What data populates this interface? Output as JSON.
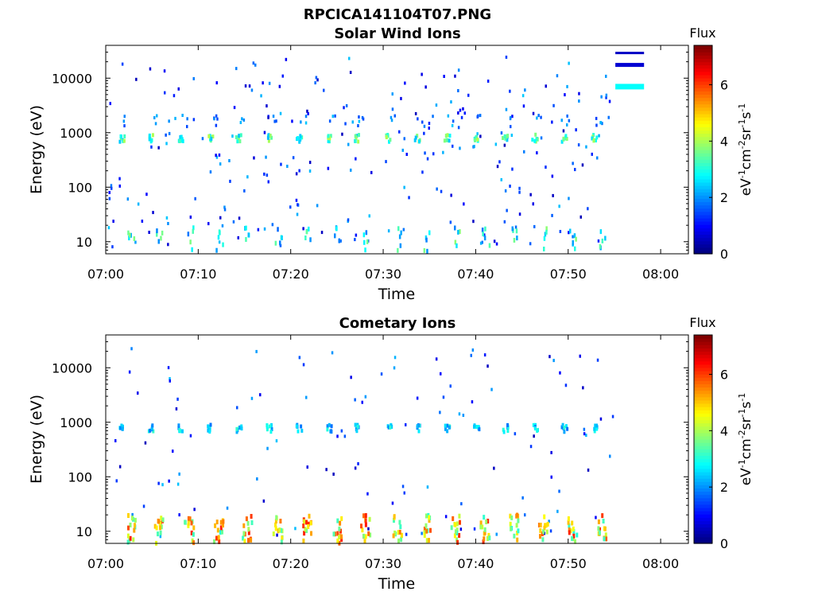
{
  "figure_title": "RPCICA141104T07.PNG",
  "chart_data": [
    {
      "type": "heatmap",
      "title": "Solar Wind Ions",
      "xlabel": "Time",
      "ylabel": "Energy (eV)",
      "x_ticks": [
        "07:00",
        "07:10",
        "07:20",
        "07:30",
        "07:40",
        "07:50",
        "08:00"
      ],
      "xlim_minutes": [
        0,
        63
      ],
      "y_scale": "log",
      "ylim": [
        6,
        40000
      ],
      "y_ticks": [
        {
          "value": 10,
          "label": "10"
        },
        {
          "value": 100,
          "label": "100"
        },
        {
          "value": 1000,
          "label": "1000"
        },
        {
          "value": 10000,
          "label": "10000"
        }
      ],
      "colorbar": {
        "title": "Flux",
        "unit_label": "eV-1cm-2sr-1s-1",
        "range": [
          0,
          7.4
        ],
        "ticks": [
          0,
          2,
          4,
          6
        ],
        "colormap": "jet"
      },
      "features": {
        "peak_times_min": [
          1.7,
          4.8,
          8.0,
          11.2,
          14.3,
          17.6,
          20.8,
          24.0,
          27.1,
          30.5,
          33.6,
          36.8,
          40.0,
          43.1,
          46.3,
          49.5,
          52.7
        ],
        "peak_energy_eV": 800,
        "peak_flux": 3.8,
        "secondary_energy_eV": 1600,
        "low_energy_bursts": true,
        "instrument_lines": [
          {
            "t0": 55.1,
            "t1": 58.2,
            "energy": 29000,
            "flux": 0.5
          },
          {
            "t0": 55.1,
            "t1": 58.2,
            "energy": 17500,
            "flux": 0.6
          },
          {
            "t0": 55.1,
            "t1": 58.2,
            "energy": 7000,
            "flux": 2.8
          }
        ]
      }
    },
    {
      "type": "heatmap",
      "title": "Cometary Ions",
      "xlabel": "Time",
      "ylabel": "Energy (eV)",
      "x_ticks": [
        "07:00",
        "07:10",
        "07:20",
        "07:30",
        "07:40",
        "07:50",
        "08:00"
      ],
      "xlim_minutes": [
        0,
        63
      ],
      "y_scale": "log",
      "ylim": [
        6,
        40000
      ],
      "y_ticks": [
        {
          "value": 10,
          "label": "10"
        },
        {
          "value": 100,
          "label": "100"
        },
        {
          "value": 1000,
          "label": "1000"
        },
        {
          "value": 10000,
          "label": "10000"
        }
      ],
      "colorbar": {
        "title": "Flux",
        "unit_label": "eV-1cm-2sr-1s-1",
        "range": [
          0,
          7.4
        ],
        "ticks": [
          0,
          2,
          4,
          6
        ],
        "colormap": "jet"
      },
      "features": {
        "peak_times_min": [
          1.7,
          4.8,
          8.0,
          11.2,
          14.3,
          17.6,
          20.8,
          24.0,
          27.1,
          30.5,
          33.6,
          36.8,
          40.0,
          43.1,
          46.3,
          49.5,
          52.7
        ],
        "peak_energy_eV": 780,
        "peak_flux": 2.9,
        "low_energy_columns_eV": [
          6,
          20
        ],
        "low_energy_flux_range": [
          3.0,
          6.3
        ],
        "data_end_min": 55.0
      }
    }
  ]
}
